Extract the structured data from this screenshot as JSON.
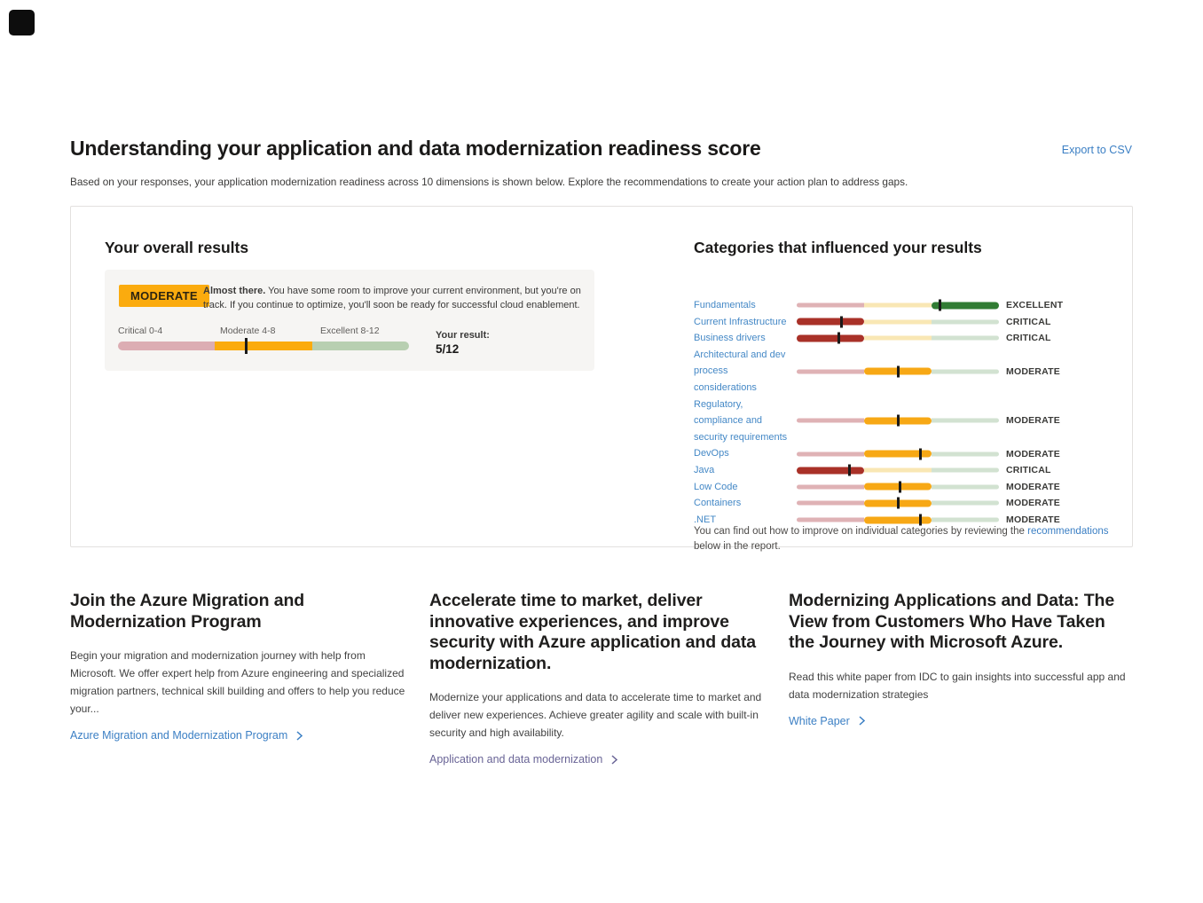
{
  "header": {
    "title": "Understanding your application and data modernization readiness score",
    "subtitle": "Based on your responses, your application modernization readiness across 10 dimensions is shown below. Explore the recommendations to create your action plan to address gaps.",
    "export_label": "Export to CSV"
  },
  "overall": {
    "heading": "Your overall results",
    "badge_label": "MODERATE",
    "summary_bold": "Almost there.",
    "summary_rest": " You have some room to improve your current environment, but you're on track. If you continue to optimize, you'll soon be ready for successful cloud enablement.",
    "scale_labels": {
      "critical": "Critical 0-4",
      "moderate": "Moderate 4-8",
      "excellent": "Excellent 8-12"
    },
    "result_label": "Your result:",
    "result_value": "5/12",
    "score": 5,
    "max_score": 12,
    "marker_pct": 43.5
  },
  "categories": {
    "heading": "Categories that influenced your results",
    "rows": [
      {
        "label": "Fundamentals",
        "status": "EXCELLENT",
        "marker_pct": 71
      },
      {
        "label": "Current Infrastructure",
        "status": "CRITICAL",
        "marker_pct": 22
      },
      {
        "label": "Business drivers",
        "status": "CRITICAL",
        "marker_pct": 21
      },
      {
        "label": "Architectural and dev process considerations",
        "status": "MODERATE",
        "marker_pct": 50
      },
      {
        "label": "Regulatory, compliance and security requirements",
        "status": "MODERATE",
        "marker_pct": 50
      },
      {
        "label": "DevOps",
        "status": "MODERATE",
        "marker_pct": 61
      },
      {
        "label": "Java",
        "status": "CRITICAL",
        "marker_pct": 26
      },
      {
        "label": "Low Code",
        "status": "MODERATE",
        "marker_pct": 51
      },
      {
        "label": "Containers",
        "status": "MODERATE",
        "marker_pct": 50
      },
      {
        "label": ".NET",
        "status": "MODERATE",
        "marker_pct": 61
      }
    ],
    "footnote_pre": "You can find out how to improve on individual categories by reviewing the ",
    "footnote_link": "recommendations",
    "footnote_post": " below in the report."
  },
  "cards": [
    {
      "title": "Join the Azure Migration and Modernization Program",
      "body": "Begin your migration and modernization journey with help from Microsoft. We offer expert help from Azure engineering and specialized migration partners, technical skill building and offers to help you reduce your...",
      "link_label": "Azure Migration and Modernization Program",
      "link_color": "#3b7fc4"
    },
    {
      "title": "Accelerate time to market, deliver innovative experiences, and improve security with Azure application and data modernization.",
      "body": "Modernize your applications and data to accelerate time to market and deliver new experiences. Achieve greater agility and scale with built-in security and high availability.",
      "link_label": "Application and data modernization",
      "link_color": "#696496"
    },
    {
      "title": "Modernizing Applications and Data: The View from Customers Who Have Taken the Journey with Microsoft Azure.",
      "body": "Read this white paper from IDC to gain insights into successful app and data modernization strategies",
      "link_label": "White Paper",
      "link_color": "#3b7fc4"
    }
  ],
  "colors": {
    "link_blue": "#3b7fc4",
    "link_purple": "#696496",
    "critical_active": "#a93128",
    "moderate_active": "#f7a815",
    "excellent_active": "#317c33",
    "critical_light": "#dfb2b5",
    "moderate_light": "#f9e7b4",
    "excellent_light": "#d2e2d1",
    "badge_amber": "#fbab0e",
    "marker_black": "#1b1a19"
  },
  "chart_data": {
    "type": "bar",
    "title": "Categories that influenced your results",
    "categories": [
      "Fundamentals",
      "Current Infrastructure",
      "Business drivers",
      "Architectural and dev process considerations",
      "Regulatory, compliance and security requirements",
      "DevOps",
      "Java",
      "Low Code",
      "Containers",
      ".NET"
    ],
    "series": [
      {
        "name": "rating",
        "values": [
          "EXCELLENT",
          "CRITICAL",
          "CRITICAL",
          "MODERATE",
          "MODERATE",
          "MODERATE",
          "CRITICAL",
          "MODERATE",
          "MODERATE",
          "MODERATE"
        ]
      },
      {
        "name": "marker_position_pct",
        "values": [
          71,
          22,
          21,
          50,
          50,
          61,
          26,
          51,
          50,
          61
        ]
      }
    ],
    "overall": {
      "score": 5,
      "max": 12,
      "band_ranges": [
        "Critical 0-4",
        "Moderate 4-8",
        "Excellent 8-12"
      ],
      "band": "MODERATE"
    }
  }
}
